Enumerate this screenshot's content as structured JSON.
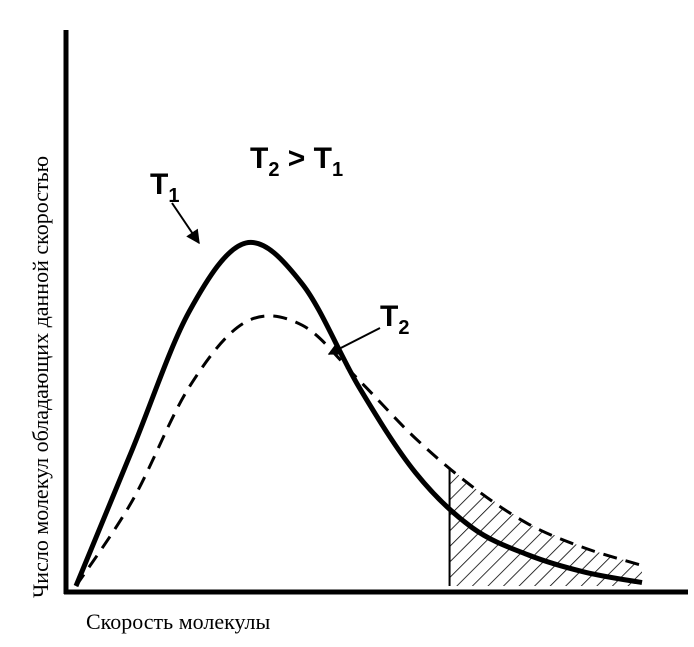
{
  "chart_data": {
    "type": "line",
    "title": "",
    "xlabel": "Скорость молекулы",
    "ylabel": "Число молекул обладающих данной скоростью",
    "xlim": [
      0,
      1
    ],
    "ylim": [
      0,
      1
    ],
    "grid": false,
    "annotation": {
      "main": "T",
      "sub_left": "2",
      "op": " > T",
      "sub_right": "1"
    },
    "series": [
      {
        "name": "T",
        "name_sub": "1",
        "style": "solid",
        "x": [
          0.0,
          0.1,
          0.2,
          0.3,
          0.4,
          0.5,
          0.6,
          0.7,
          0.8,
          0.9,
          1.0
        ],
        "y": [
          0.0,
          0.4,
          0.8,
          1.0,
          0.88,
          0.58,
          0.33,
          0.17,
          0.09,
          0.04,
          0.01
        ]
      },
      {
        "name": "T",
        "name_sub": "2",
        "style": "dashed",
        "x": [
          0.0,
          0.1,
          0.2,
          0.3,
          0.4,
          0.5,
          0.6,
          0.7,
          0.8,
          0.9,
          1.0
        ],
        "y": [
          0.0,
          0.25,
          0.58,
          0.77,
          0.76,
          0.6,
          0.43,
          0.29,
          0.18,
          0.11,
          0.06
        ]
      }
    ],
    "shaded_region": {
      "x_from": 0.66,
      "x_to": 1.0,
      "series": "T2",
      "pattern": "hatched"
    },
    "colors": {
      "axis": "#000000",
      "curve": "#000000",
      "background": "#ffffff"
    }
  }
}
